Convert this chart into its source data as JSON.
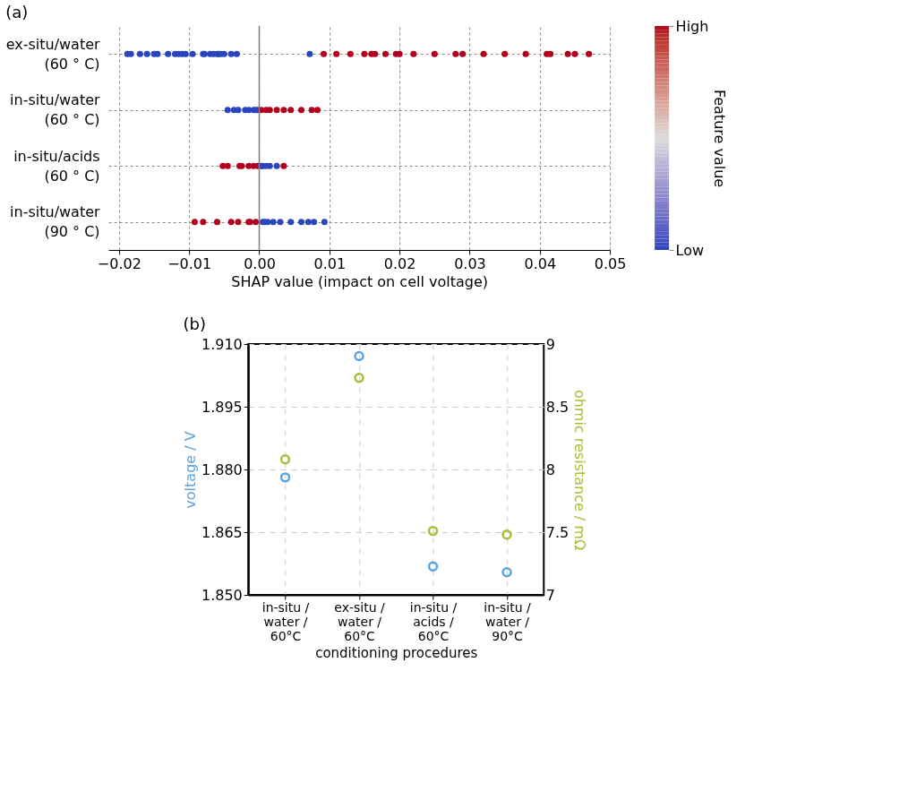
{
  "chart_data": [
    {
      "type": "scatter",
      "title": "(a)",
      "orientation": "horizontal",
      "xlabel": "SHAP value (impact on cell voltage)",
      "clabel": "Feature value",
      "categories": [
        "ex-situ/water\n(60 ° C)",
        "in-situ/water\n(60 ° C)",
        "in-situ/acids\n(60 ° C)",
        "in-situ/water\n(90 ° C)"
      ],
      "xlim": [
        -0.0215,
        0.05
      ],
      "xticks": [
        {
          "value": -0.02,
          "label": "−0.02"
        },
        {
          "value": -0.01,
          "label": "−0.01"
        },
        {
          "value": 0,
          "label": "0.00"
        },
        {
          "value": 0.01,
          "label": "0.01"
        },
        {
          "value": 0.02,
          "label": "0.02"
        },
        {
          "value": 0.03,
          "label": "0.03"
        },
        {
          "value": 0.04,
          "label": "0.04"
        },
        {
          "value": 0.05,
          "label": "0.05"
        }
      ],
      "clim": [
        0,
        1
      ],
      "cticks": [
        {
          "value": 0,
          "label": "Low"
        },
        {
          "value": 1,
          "label": "High"
        }
      ],
      "grid": true,
      "marker": "circle",
      "ref_lines": [
        {
          "axis": "x",
          "value": 0,
          "color": "#808080"
        }
      ],
      "series": [
        {
          "x": [
            "ex-situ/water\n(60 ° C)",
            "ex-situ/water\n(60 ° C)",
            "ex-situ/water\n(60 ° C)",
            "ex-situ/water\n(60 ° C)",
            "ex-situ/water\n(60 ° C)",
            "ex-situ/water\n(60 ° C)",
            "ex-situ/water\n(60 ° C)",
            "ex-situ/water\n(60 ° C)",
            "ex-situ/water\n(60 ° C)",
            "ex-situ/water\n(60 ° C)",
            "ex-situ/water\n(60 ° C)",
            "ex-situ/water\n(60 ° C)",
            "ex-situ/water\n(60 ° C)",
            "ex-situ/water\n(60 ° C)",
            "ex-situ/water\n(60 ° C)",
            "ex-situ/water\n(60 ° C)",
            "ex-situ/water\n(60 ° C)",
            "ex-situ/water\n(60 ° C)",
            "ex-situ/water\n(60 ° C)",
            "ex-situ/water\n(60 ° C)",
            "ex-situ/water\n(60 ° C)",
            "ex-situ/water\n(60 ° C)",
            "ex-situ/water\n(60 ° C)",
            "ex-situ/water\n(60 ° C)",
            "ex-situ/water\n(60 ° C)",
            "ex-situ/water\n(60 ° C)",
            "ex-situ/water\n(60 ° C)",
            "ex-situ/water\n(60 ° C)",
            "ex-situ/water\n(60 ° C)",
            "ex-situ/water\n(60 ° C)",
            "ex-situ/water\n(60 ° C)",
            "ex-situ/water\n(60 ° C)",
            "ex-situ/water\n(60 ° C)",
            "ex-situ/water\n(60 ° C)",
            "ex-situ/water\n(60 ° C)",
            "ex-situ/water\n(60 ° C)",
            "ex-situ/water\n(60 ° C)",
            "ex-situ/water\n(60 ° C)",
            "ex-situ/water\n(60 ° C)",
            "ex-situ/water\n(60 ° C)",
            "ex-situ/water\n(60 ° C)",
            "ex-situ/water\n(60 ° C)",
            "ex-situ/water\n(60 ° C)",
            "ex-situ/water\n(60 ° C)",
            "in-situ/water\n(60 ° C)",
            "in-situ/water\n(60 ° C)",
            "in-situ/water\n(60 ° C)",
            "in-situ/water\n(60 ° C)",
            "in-situ/water\n(60 ° C)",
            "in-situ/water\n(60 ° C)",
            "in-situ/water\n(60 ° C)",
            "in-situ/water\n(60 ° C)",
            "in-situ/water\n(60 ° C)",
            "in-situ/water\n(60 ° C)",
            "in-situ/water\n(60 ° C)",
            "in-situ/water\n(60 ° C)",
            "in-situ/water\n(60 ° C)",
            "in-situ/water\n(60 ° C)",
            "in-situ/water\n(60 ° C)",
            "in-situ/water\n(60 ° C)",
            "in-situ/water\n(60 ° C)",
            "in-situ/acids\n(60 ° C)",
            "in-situ/acids\n(60 ° C)",
            "in-situ/acids\n(60 ° C)",
            "in-situ/acids\n(60 ° C)",
            "in-situ/acids\n(60 ° C)",
            "in-situ/acids\n(60 ° C)",
            "in-situ/acids\n(60 ° C)",
            "in-situ/acids\n(60 ° C)",
            "in-situ/acids\n(60 ° C)",
            "in-situ/acids\n(60 ° C)",
            "in-situ/acids\n(60 ° C)",
            "in-situ/acids\n(60 ° C)",
            "in-situ/acids\n(60 ° C)",
            "in-situ/water\n(90 ° C)",
            "in-situ/water\n(90 ° C)",
            "in-situ/water\n(90 ° C)",
            "in-situ/water\n(90 ° C)",
            "in-situ/water\n(90 ° C)",
            "in-situ/water\n(90 ° C)",
            "in-situ/water\n(90 ° C)",
            "in-situ/water\n(90 ° C)",
            "in-situ/water\n(90 ° C)",
            "in-situ/water\n(90 ° C)",
            "in-situ/water\n(90 ° C)",
            "in-situ/water\n(90 ° C)",
            "in-situ/water\n(90 ° C)",
            "in-situ/water\n(90 ° C)",
            "in-situ/water\n(90 ° C)",
            "in-situ/water\n(90 ° C)",
            "in-situ/water\n(90 ° C)",
            "in-situ/water\n(90 ° C)"
          ],
          "values": [
            -0.0188,
            -0.0183,
            -0.017,
            -0.016,
            -0.015,
            -0.0145,
            -0.013,
            -0.012,
            -0.0115,
            -0.011,
            -0.0105,
            -0.0095,
            -0.008,
            -0.0078,
            -0.007,
            -0.0065,
            -0.006,
            -0.0058,
            -0.0055,
            -0.005,
            -0.004,
            -0.0032,
            0.0072,
            0.0092,
            0.011,
            0.013,
            0.015,
            0.016,
            0.0165,
            0.018,
            0.0195,
            0.02,
            0.022,
            0.025,
            0.028,
            0.029,
            0.032,
            0.035,
            0.038,
            0.041,
            0.0415,
            0.044,
            0.045,
            0.047,
            -0.0045,
            -0.0036,
            -0.003,
            -0.002,
            -0.0015,
            -0.0008,
            -0.0005,
            -0.0002,
            0.0003,
            0.001,
            0.0015,
            0.0025,
            0.0035,
            0.0045,
            0.006,
            0.0075,
            0.0083,
            -0.0052,
            -0.0045,
            -0.0028,
            -0.0025,
            -0.0015,
            -0.0008,
            -0.0002,
            0.0003,
            0.0005,
            0.001,
            0.0015,
            0.0025,
            0.0035,
            -0.0092,
            -0.008,
            -0.006,
            -0.004,
            -0.003,
            -0.0015,
            -0.0013,
            -0.0005,
            0.0005,
            0.0008,
            0.0012,
            0.002,
            0.003,
            0.0045,
            0.006,
            0.007,
            0.0078,
            0.0093
          ],
          "cvalues": [
            0,
            0,
            0,
            0,
            0,
            0,
            0,
            0,
            0,
            0,
            0,
            0,
            0,
            0,
            0,
            0,
            0,
            0,
            0,
            0,
            0,
            0,
            0,
            1,
            1,
            1,
            1,
            1,
            1,
            1,
            1,
            1,
            1,
            1,
            1,
            1,
            1,
            1,
            1,
            1,
            1,
            1,
            1,
            1,
            0,
            0,
            0,
            0,
            0,
            0,
            0,
            0,
            1,
            1,
            1,
            1,
            1,
            1,
            1,
            1,
            1,
            1,
            1,
            1,
            1,
            1,
            1,
            1,
            0,
            0,
            0,
            0,
            0,
            1,
            1,
            1,
            1,
            1,
            1,
            1,
            1,
            1,
            0,
            0,
            0,
            0,
            0,
            0,
            0,
            0,
            0,
            0
          ]
        }
      ]
    },
    {
      "type": "scatter",
      "title": "(b)",
      "xlabel": "conditioning procedures",
      "ylabel": "voltage / V",
      "y2label": "ohmic resistance / mΩ",
      "categories": [
        "in-situ /\nwater /\n60°C",
        "ex-situ /\nwater /\n60°C",
        "in-situ /\nacids /\n60°C",
        "in-situ /\nwater /\n90°C"
      ],
      "ylim": [
        1.85,
        1.91
      ],
      "yticks": [
        {
          "value": 1.85,
          "label": "1.850"
        },
        1.865,
        {
          "value": 1.88,
          "label": "1.880"
        },
        1.895,
        {
          "value": 1.91,
          "label": "1.910"
        }
      ],
      "y2lim": [
        7,
        9
      ],
      "y2ticks": [
        7,
        7.5,
        8,
        8.5,
        9
      ],
      "grid": true,
      "legend": false,
      "marker": "circle",
      "series": [
        {
          "color": "#5ba4e0",
          "values": [
            1.8781,
            1.9071,
            1.8568,
            1.8554
          ]
        },
        {
          "color": "#a8bf3a",
          "axis": "y2",
          "values": [
            8.08,
            8.73,
            7.51,
            7.48
          ]
        }
      ]
    }
  ]
}
